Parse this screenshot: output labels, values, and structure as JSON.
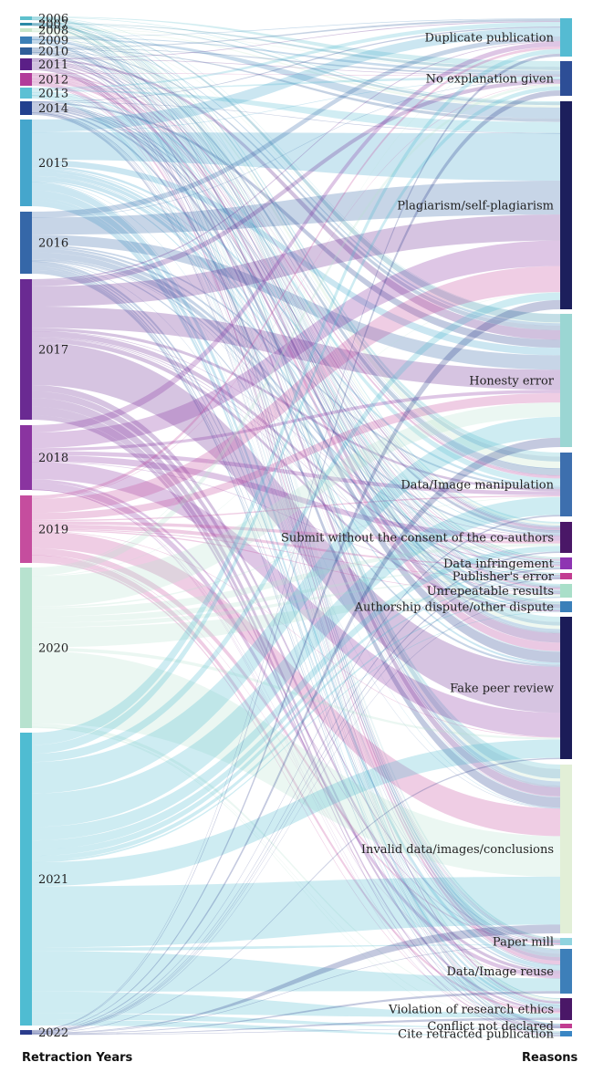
{
  "axis_titles": {
    "left": "Retraction   Years",
    "right": "Reasons"
  },
  "years": [
    {
      "label": "2006",
      "color": "#5ec0cd"
    },
    {
      "label": "2007",
      "color": "#2b8aa6"
    },
    {
      "label": "2008",
      "color": "#c7e6c9"
    },
    {
      "label": "2009",
      "color": "#3b7fb6"
    },
    {
      "label": "2010",
      "color": "#2f5e99"
    },
    {
      "label": "2011",
      "color": "#5b1f87"
    },
    {
      "label": "2012",
      "color": "#b23c9a"
    },
    {
      "label": "2013",
      "color": "#5bc0d4"
    },
    {
      "label": "2014",
      "color": "#23408e"
    },
    {
      "label": "2015",
      "color": "#45a6cc"
    },
    {
      "label": "2016",
      "color": "#3567a8"
    },
    {
      "label": "2017",
      "color": "#6a2a92"
    },
    {
      "label": "2018",
      "color": "#8a34a0"
    },
    {
      "label": "2019",
      "color": "#c54d9e"
    },
    {
      "label": "2020",
      "color": "#b7e2cf"
    },
    {
      "label": "2021",
      "color": "#4fbcd2"
    },
    {
      "label": "2022",
      "color": "#2b3c8c"
    }
  ],
  "reasons": [
    {
      "label": "Duplicate publication",
      "color": "#55bbd2"
    },
    {
      "label": "No explanation given",
      "color": "#2d4e96"
    },
    {
      "label": "Plagiarism/self-plagiarism",
      "color": "#1c1f5c"
    },
    {
      "label": "Honesty error",
      "color": "#9bd6d3"
    },
    {
      "label": "Data/Image manipulation",
      "color": "#3d6fae"
    },
    {
      "label": "Submit without the consent of the co-authors",
      "color": "#4a1767"
    },
    {
      "label": "Data infringement",
      "color": "#8e34b2"
    },
    {
      "label": "Publisher's error",
      "color": "#c23d91"
    },
    {
      "label": "Unrepeatable results",
      "color": "#a9dfc9"
    },
    {
      "label": "Authorship dispute/other dispute",
      "color": "#3a7fb9"
    },
    {
      "label": "Fake peer review",
      "color": "#1b1c58"
    },
    {
      "label": "Invalid data/images/conclusions",
      "color": "#e2efd7"
    },
    {
      "label": "Paper mill",
      "color": "#8fd3df"
    },
    {
      "label": "Data/Image reuse",
      "color": "#3d7fb9"
    },
    {
      "label": "Violation of research ethics",
      "color": "#4a1767"
    },
    {
      "label": "Conflict not declared",
      "color": "#c23d91"
    },
    {
      "label": "Cite retracted publication",
      "color": "#3a86c4"
    }
  ]
}
